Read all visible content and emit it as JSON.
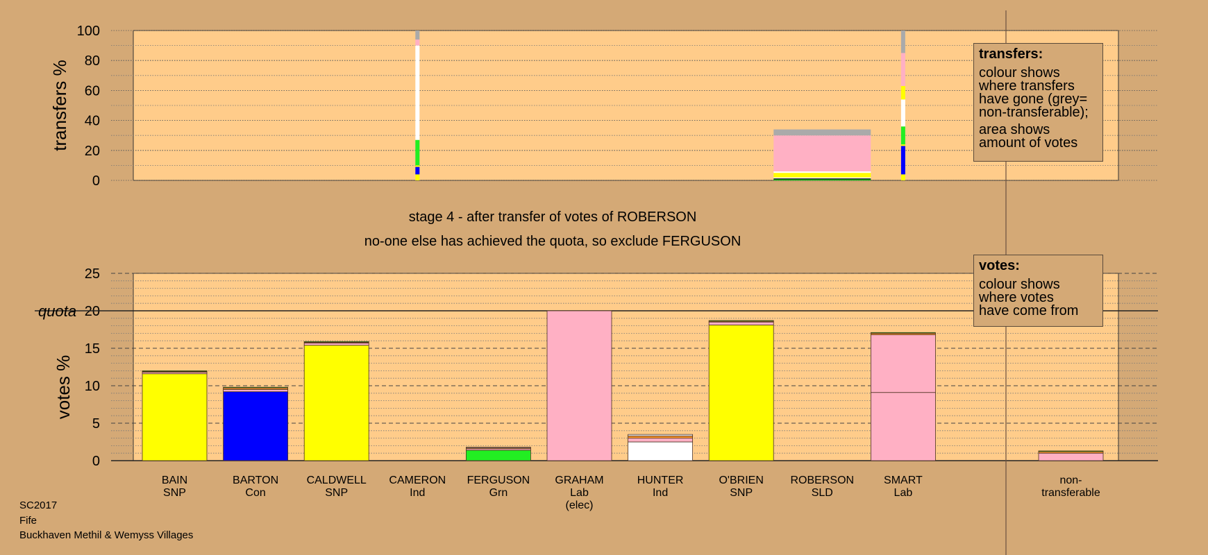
{
  "colors": {
    "background": "#d4a976",
    "plot_area": "#ffcc8a",
    "SNP": "#ffff00",
    "Con": "#0000ff",
    "Grn": "#22ee22",
    "Lab": "#ffb0c4",
    "Ind": "#ffffff",
    "SLD": "#ff9933",
    "nontransferable": "#aaaaaa"
  },
  "stage_text": {
    "line1": "stage 4 - after transfer of votes of ROBERSON",
    "line2": "no-one else has achieved the quota, so exclude FERGUSON"
  },
  "legend_transfers": {
    "title": "transfers:",
    "lines": [
      "colour shows",
      "where transfers",
      "have gone (grey=",
      "non-transferable);"
    ],
    "lines2": [
      "area shows",
      "amount of votes"
    ]
  },
  "legend_votes": {
    "title": "votes:",
    "lines": [
      "colour shows",
      "where votes",
      "have come from"
    ]
  },
  "footer": {
    "line1": "SC2017",
    "line2": "Fife",
    "line3": "Buckhaven Methil & Wemyss Villages"
  },
  "chart_data": [
    {
      "type": "bar",
      "name": "transfers",
      "ylabel": "transfers %",
      "ylim": [
        0,
        100
      ],
      "yticks": [
        0,
        20,
        40,
        60,
        80,
        100
      ],
      "grid": true,
      "columns": [
        {
          "candidate": "CAMERON",
          "total": 100,
          "segments": [
            {
              "party": "SNP",
              "value": 4
            },
            {
              "party": "Con",
              "value": 5
            },
            {
              "party": "SNP",
              "value": 1
            },
            {
              "party": "Grn",
              "value": 17
            },
            {
              "party": "Ind",
              "value": 63
            },
            {
              "party": "Lab",
              "value": 4
            },
            {
              "party": "nontransferable",
              "value": 6
            }
          ]
        },
        {
          "candidate": "ROBERSON",
          "total": 34,
          "segments": [
            {
              "party": "Grn",
              "value": 1
            },
            {
              "party": "Ind",
              "value": 1
            },
            {
              "party": "SNP",
              "value": 3
            },
            {
              "party": "Ind",
              "value": 1
            },
            {
              "party": "Lab",
              "value": 24
            },
            {
              "party": "nontransferable",
              "value": 4
            }
          ]
        },
        {
          "candidate": "SMART",
          "total": 100,
          "segments": [
            {
              "party": "SNP",
              "value": 4
            },
            {
              "party": "Con",
              "value": 19
            },
            {
              "party": "SNP",
              "value": 1
            },
            {
              "party": "Grn",
              "value": 12
            },
            {
              "party": "Ind",
              "value": 18
            },
            {
              "party": "SNP",
              "value": 9
            },
            {
              "party": "Lab",
              "value": 22
            },
            {
              "party": "nontransferable",
              "value": 15
            }
          ]
        }
      ]
    },
    {
      "type": "bar",
      "name": "votes",
      "ylabel": "votes %",
      "ylim": [
        0,
        25
      ],
      "yticks": [
        0,
        5,
        10,
        15,
        20,
        25
      ],
      "quota": 20,
      "quota_label": "quota",
      "grid": true,
      "candidates": [
        {
          "name": "BAIN",
          "party": "SNP",
          "extra": "",
          "segments": [
            {
              "party": "SNP",
              "value": 11.6
            },
            {
              "party": "Lab",
              "value": 0.2
            },
            {
              "party": "SLD",
              "value": 0.1
            },
            {
              "party": "Grn",
              "value": 0.1
            }
          ]
        },
        {
          "name": "BARTON",
          "party": "Con",
          "extra": "",
          "segments": [
            {
              "party": "Con",
              "value": 9.2
            },
            {
              "party": "Lab",
              "value": 0.3
            },
            {
              "party": "SLD",
              "value": 0.2
            },
            {
              "party": "Grn",
              "value": 0.1
            }
          ]
        },
        {
          "name": "CALDWELL",
          "party": "SNP",
          "extra": "",
          "segments": [
            {
              "party": "SNP",
              "value": 15.4
            },
            {
              "party": "Lab",
              "value": 0.3
            },
            {
              "party": "SLD",
              "value": 0.1
            },
            {
              "party": "Grn",
              "value": 0.1
            }
          ]
        },
        {
          "name": "CAMERON",
          "party": "Ind",
          "extra": "",
          "segments": []
        },
        {
          "name": "FERGUSON",
          "party": "Grn",
          "extra": "",
          "segments": [
            {
              "party": "Grn",
              "value": 1.4
            },
            {
              "party": "Lab",
              "value": 0.2
            },
            {
              "party": "SLD",
              "value": 0.1
            },
            {
              "party": "Ind",
              "value": 0.1
            }
          ]
        },
        {
          "name": "GRAHAM",
          "party": "Lab",
          "extra": "(elec)",
          "segments": [
            {
              "party": "Lab",
              "value": 20
            }
          ]
        },
        {
          "name": "HUNTER",
          "party": "Ind",
          "extra": "",
          "segments": [
            {
              "party": "Ind",
              "value": 2.5
            },
            {
              "party": "Lab",
              "value": 0.5
            },
            {
              "party": "SLD",
              "value": 0.3
            },
            {
              "party": "Ind",
              "value": 0.2
            }
          ]
        },
        {
          "name": "O'BRIEN",
          "party": "SNP",
          "extra": "",
          "segments": [
            {
              "party": "SNP",
              "value": 18.1
            },
            {
              "party": "Lab",
              "value": 0.4
            },
            {
              "party": "SLD",
              "value": 0.1
            },
            {
              "party": "Grn",
              "value": 0.1
            }
          ]
        },
        {
          "name": "ROBERSON",
          "party": "SLD",
          "extra": "",
          "segments": []
        },
        {
          "name": "SMART",
          "party": "Lab",
          "extra": "",
          "segments": [
            {
              "party": "Lab",
              "value": 9.1
            },
            {
              "party": "Lab",
              "value": 7.7
            },
            {
              "party": "SLD",
              "value": 0.2
            },
            {
              "party": "Grn",
              "value": 0.1
            }
          ]
        },
        {
          "name": "non-",
          "party": "transferable",
          "extra": "",
          "segments": [
            {
              "party": "Lab",
              "value": 1.0
            },
            {
              "party": "SLD",
              "value": 0.2
            },
            {
              "party": "Grn",
              "value": 0.1
            }
          ]
        }
      ]
    }
  ]
}
